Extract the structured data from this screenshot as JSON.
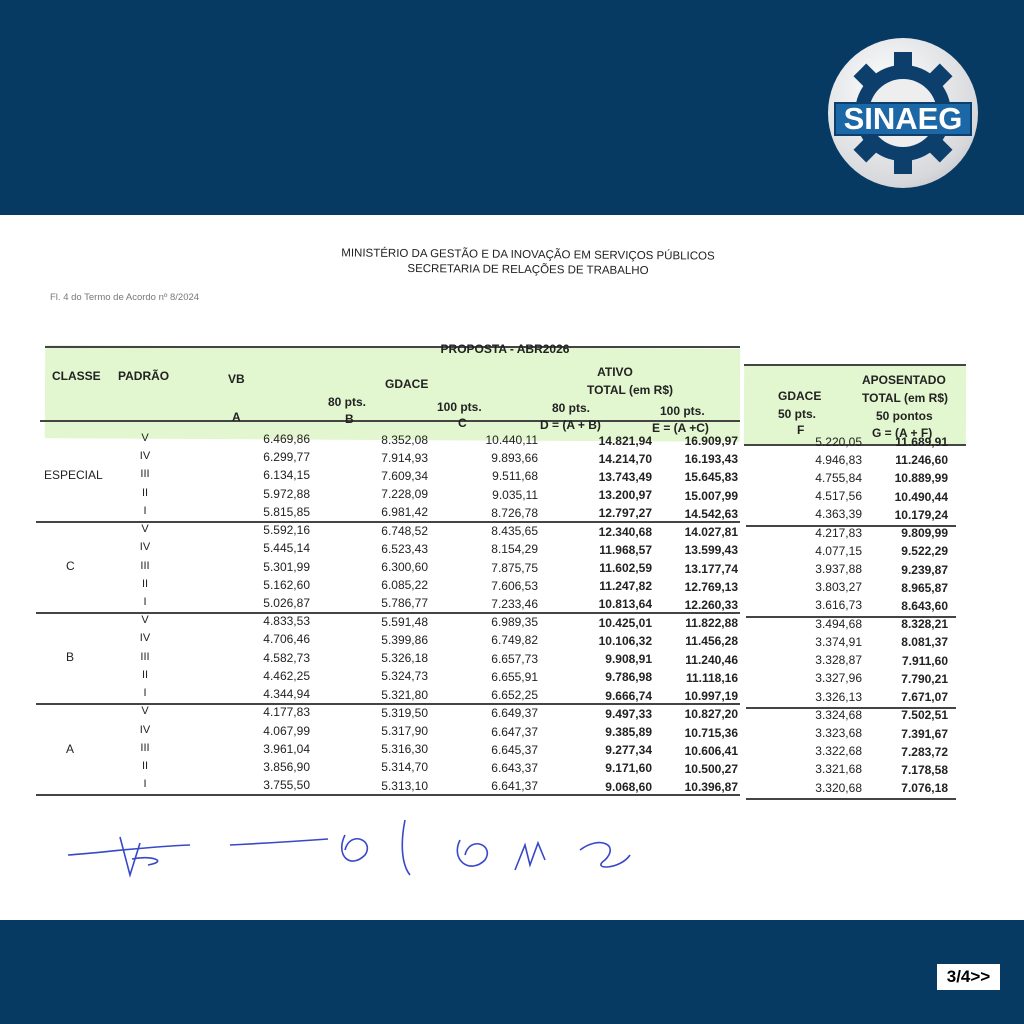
{
  "logo": {
    "text": "SINAEG"
  },
  "header": {
    "ministry": "MINISTÉRIO DA GESTÃO E DA INOVAÇÃO EM SERVIÇOS PÚBLICOS",
    "secretariat": "SECRETARIA DE RELAÇÕES DE TRABALHO",
    "reference": "Fl. 4 do Termo de Acordo nº 8/2024"
  },
  "table": {
    "title": "PROPOSTA - ABR2026",
    "headers": {
      "classe": "CLASSE",
      "padrao": "PADRÃO",
      "vb": "VB",
      "vb_code": "A",
      "gdace": "GDACE",
      "gdace80": "80 pts.",
      "gdace80_code": "B",
      "gdace100": "100 pts.",
      "gdace100_code": "C",
      "ativo": "ATIVO",
      "ativo_total": "TOTAL (em R$)",
      "ativo80": "80 pts.",
      "ativo80_code": "D = (A + B)",
      "ativo100": "100 pts.",
      "ativo100_code": "E = (A +C)",
      "gdace_apos": "GDACE",
      "gdace50": "50 pts.",
      "gdace50_code": "F",
      "aposentado": "APOSENTADO",
      "apos_total": "TOTAL (em R$)",
      "apos50": "50 pontos",
      "apos50_code": "G = (A + F)"
    },
    "groups": [
      {
        "classe": "ESPECIAL",
        "rows": [
          [
            "V",
            "6.469,86",
            "8.352,08",
            "10.440,11",
            "14.821,94",
            "16.909,97",
            "5.220,05",
            "11.689,91"
          ],
          [
            "IV",
            "6.299,77",
            "7.914,93",
            "9.893,66",
            "14.214,70",
            "16.193,43",
            "4.946,83",
            "11.246,60"
          ],
          [
            "III",
            "6.134,15",
            "7.609,34",
            "9.511,68",
            "13.743,49",
            "15.645,83",
            "4.755,84",
            "10.889,99"
          ],
          [
            "II",
            "5.972,88",
            "7.228,09",
            "9.035,11",
            "13.200,97",
            "15.007,99",
            "4.517,56",
            "10.490,44"
          ],
          [
            "I",
            "5.815,85",
            "6.981,42",
            "8.726,78",
            "12.797,27",
            "14.542,63",
            "4.363,39",
            "10.179,24"
          ]
        ]
      },
      {
        "classe": "C",
        "rows": [
          [
            "V",
            "5.592,16",
            "6.748,52",
            "8.435,65",
            "12.340,68",
            "14.027,81",
            "4.217,83",
            "9.809,99"
          ],
          [
            "IV",
            "5.445,14",
            "6.523,43",
            "8.154,29",
            "11.968,57",
            "13.599,43",
            "4.077,15",
            "9.522,29"
          ],
          [
            "III",
            "5.301,99",
            "6.300,60",
            "7.875,75",
            "11.602,59",
            "13.177,74",
            "3.937,88",
            "9.239,87"
          ],
          [
            "II",
            "5.162,60",
            "6.085,22",
            "7.606,53",
            "11.247,82",
            "12.769,13",
            "3.803,27",
            "8.965,87"
          ],
          [
            "I",
            "5.026,87",
            "5.786,77",
            "7.233,46",
            "10.813,64",
            "12.260,33",
            "3.616,73",
            "8.643,60"
          ]
        ]
      },
      {
        "classe": "B",
        "rows": [
          [
            "V",
            "4.833,53",
            "5.591,48",
            "6.989,35",
            "10.425,01",
            "11.822,88",
            "3.494,68",
            "8.328,21"
          ],
          [
            "IV",
            "4.706,46",
            "5.399,86",
            "6.749,82",
            "10.106,32",
            "11.456,28",
            "3.374,91",
            "8.081,37"
          ],
          [
            "III",
            "4.582,73",
            "5.326,18",
            "6.657,73",
            "9.908,91",
            "11.240,46",
            "3.328,87",
            "7.911,60"
          ],
          [
            "II",
            "4.462,25",
            "5.324,73",
            "6.655,91",
            "9.786,98",
            "11.118,16",
            "3.327,96",
            "7.790,21"
          ],
          [
            "I",
            "4.344,94",
            "5.321,80",
            "6.652,25",
            "9.666,74",
            "10.997,19",
            "3.326,13",
            "7.671,07"
          ]
        ]
      },
      {
        "classe": "A",
        "rows": [
          [
            "V",
            "4.177,83",
            "5.319,50",
            "6.649,37",
            "9.497,33",
            "10.827,20",
            "3.324,68",
            "7.502,51"
          ],
          [
            "IV",
            "4.067,99",
            "5.317,90",
            "6.647,37",
            "9.385,89",
            "10.715,36",
            "3.323,68",
            "7.391,67"
          ],
          [
            "III",
            "3.961,04",
            "5.316,30",
            "6.645,37",
            "9.277,34",
            "10.606,41",
            "3.322,68",
            "7.283,72"
          ],
          [
            "II",
            "3.856,90",
            "5.314,70",
            "6.643,37",
            "9.171,60",
            "10.500,27",
            "3.321,68",
            "7.178,58"
          ],
          [
            "I",
            "3.755,50",
            "5.313,10",
            "6.641,37",
            "9.068,60",
            "10.396,87",
            "3.320,68",
            "7.076,18"
          ]
        ]
      }
    ]
  },
  "pager": {
    "label": "3/4>>"
  },
  "colors": {
    "band": "#063a63",
    "header_fill": "#e2f6cf",
    "logo_blue": "#1c67a6"
  }
}
